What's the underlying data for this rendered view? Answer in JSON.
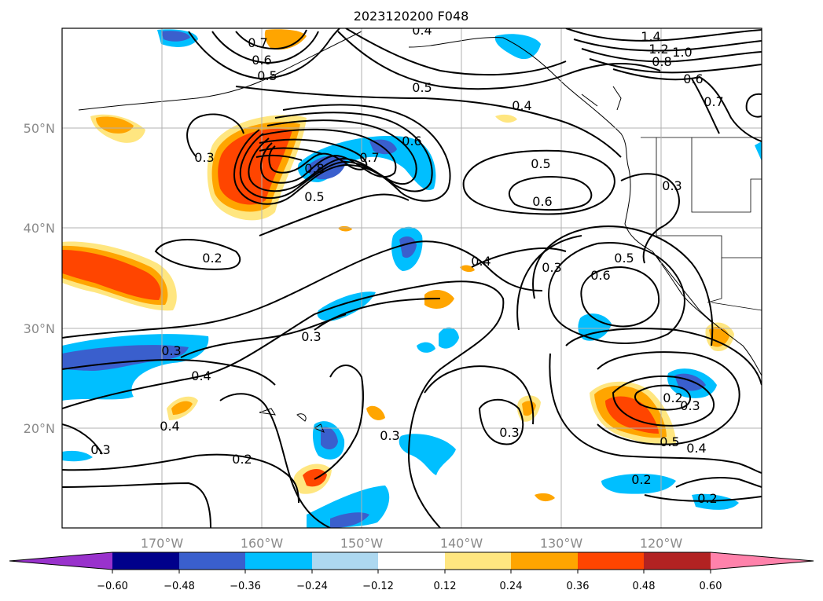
{
  "title": "2023120200 F048",
  "map": {
    "lon_range": [
      -180,
      -110
    ],
    "lat_range": [
      10,
      60
    ],
    "lat_ticks": [
      "50°N",
      "40°N",
      "30°N",
      "20°N"
    ],
    "lon_ticks": [
      "170°W",
      "160°W",
      "150°W",
      "140°W",
      "130°W",
      "120°W"
    ],
    "grid": true
  },
  "colorbar": {
    "extend": "both",
    "ticks": [
      "−0.60",
      "−0.48",
      "−0.36",
      "−0.24",
      "−0.12",
      "0.12",
      "0.24",
      "0.36",
      "0.48",
      "0.60"
    ],
    "colors": [
      "#9932cc",
      "#00008b",
      "#3a5fcd",
      "#00bfff",
      "#add8f0",
      "#ffffff",
      "#ffe680",
      "#ffa500",
      "#ff4500",
      "#b22222",
      "#ff82ab"
    ]
  },
  "contour_labels": [
    "0.4",
    "1.4",
    "1.2",
    "1.0",
    "0.8",
    "0.6",
    "0.7",
    "0.7",
    "0.6",
    "0.5",
    "0.5",
    "0.4",
    "0.3",
    "0.8",
    "0.7",
    "0.6",
    "0.5",
    "0.5",
    "0.6",
    "0.3",
    "0.2",
    "0.4",
    "0.3",
    "0.5",
    "0.6",
    "0.3",
    "0.3",
    "0.4",
    "0.4",
    "0.3",
    "0.3",
    "0.2",
    "0.3",
    "0.2",
    "0.3",
    "0.5",
    "0.4",
    "0.2",
    "0.2"
  ]
}
